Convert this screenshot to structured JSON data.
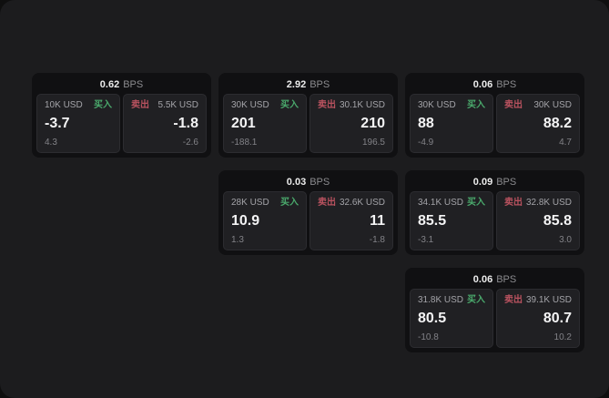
{
  "labels": {
    "buy": "买入",
    "sell": "卖出",
    "bps": "BPS"
  },
  "cards": [
    {
      "bps": "0.62",
      "buy": {
        "amount": "10K USD",
        "price": "-3.7",
        "delta": "4.3"
      },
      "sell": {
        "amount": "5.5K USD",
        "price": "-1.8",
        "delta": "-2.6"
      }
    },
    {
      "bps": "2.92",
      "buy": {
        "amount": "30K USD",
        "price": "201",
        "delta": "-188.1"
      },
      "sell": {
        "amount": "30.1K USD",
        "price": "210",
        "delta": "196.5"
      }
    },
    {
      "bps": "0.06",
      "buy": {
        "amount": "30K USD",
        "price": "88",
        "delta": "-4.9"
      },
      "sell": {
        "amount": "30K USD",
        "price": "88.2",
        "delta": "4.7"
      }
    },
    {
      "bps": "0.03",
      "buy": {
        "amount": "28K USD",
        "price": "10.9",
        "delta": "1.3"
      },
      "sell": {
        "amount": "32.6K USD",
        "price": "11",
        "delta": "-1.8"
      }
    },
    {
      "bps": "0.09",
      "buy": {
        "amount": "34.1K USD",
        "price": "85.5",
        "delta": "-3.1"
      },
      "sell": {
        "amount": "32.8K USD",
        "price": "85.8",
        "delta": "3.0"
      }
    },
    {
      "bps": "0.06",
      "buy": {
        "amount": "31.8K USD",
        "price": "80.5",
        "delta": "-10.8"
      },
      "sell": {
        "amount": "39.1K USD",
        "price": "80.7",
        "delta": "10.2"
      }
    }
  ],
  "colors": {
    "background": "#1c1c1e",
    "card": "#101012",
    "panel": "#202023",
    "buy_green": "#4aa96c",
    "sell_red": "#b9525f"
  }
}
